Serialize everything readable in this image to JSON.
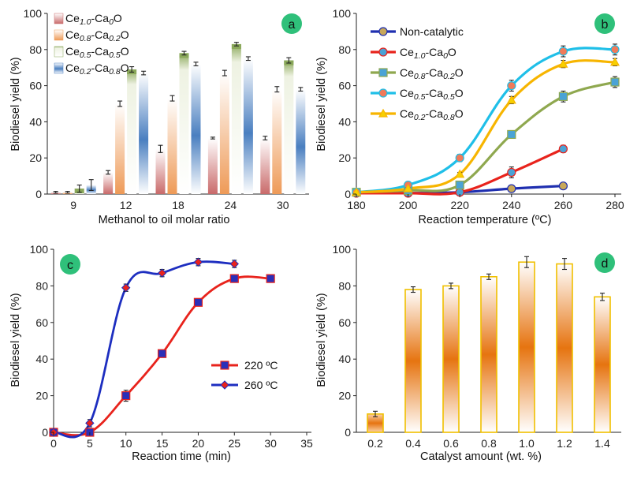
{
  "chart_data": [
    {
      "panel": "a",
      "type": "bar",
      "xlabel": "Methanol to oil molar ratio",
      "ylabel": "Biodiesel yield (%)",
      "ylim": [
        0,
        100
      ],
      "yticks": [
        0,
        20,
        40,
        60,
        80,
        100
      ],
      "categories": [
        "9",
        "12",
        "18",
        "24",
        "30"
      ],
      "legend_position": "top-left",
      "series": [
        {
          "name_parts": [
            [
              "Ce",
              ""
            ],
            [
              "1.0",
              "sub"
            ],
            [
              "-Ca",
              ""
            ],
            [
              "0",
              "sub"
            ],
            [
              "O",
              ""
            ]
          ],
          "values": [
            1,
            12,
            25,
            31,
            31
          ],
          "errors": [
            0.5,
            1,
            2,
            0.5,
            1
          ],
          "color": "#c96a6a"
        },
        {
          "name_parts": [
            [
              "Ce",
              ""
            ],
            [
              "0.8",
              "sub"
            ],
            [
              "-Ca",
              ""
            ],
            [
              "0.2",
              "sub"
            ],
            [
              "O",
              ""
            ]
          ],
          "values": [
            1,
            50,
            53,
            67,
            58
          ],
          "errors": [
            0.5,
            1.5,
            1.5,
            1.5,
            1.5
          ],
          "color": "#ee9a57"
        },
        {
          "name_parts": [
            [
              "Ce",
              ""
            ],
            [
              "0.5",
              "sub"
            ],
            [
              "-Ca",
              ""
            ],
            [
              "0.5",
              "sub"
            ],
            [
              "O",
              ""
            ]
          ],
          "values": [
            3,
            69,
            78,
            83,
            74
          ],
          "errors": [
            2,
            1.5,
            1,
            1,
            1.5
          ],
          "color": "#8aa85a"
        },
        {
          "name_parts": [
            [
              "Ce",
              ""
            ],
            [
              "0.2",
              "sub"
            ],
            [
              "-Ca",
              ""
            ],
            [
              "0.8",
              "sub"
            ],
            [
              "O",
              ""
            ]
          ],
          "values": [
            5,
            67,
            72,
            75,
            58
          ],
          "errors": [
            3,
            1,
            1,
            1,
            1
          ],
          "color": "#4a7fc0"
        }
      ]
    },
    {
      "panel": "b",
      "type": "line",
      "xlabel": "Reaction temperature (ºC)",
      "ylabel": "Biodiesel yield (%)",
      "xlim": [
        180,
        280
      ],
      "xticks": [
        180,
        200,
        220,
        240,
        260,
        280
      ],
      "ylim": [
        0,
        100
      ],
      "yticks": [
        0,
        20,
        40,
        60,
        80,
        100
      ],
      "legend_position": "top-left",
      "series": [
        {
          "name_parts": [
            [
              "Non-catalytic",
              ""
            ]
          ],
          "color": "#1f2fb0",
          "marker": "circle",
          "marker_fill": "#c8a85a",
          "x": [
            180,
            200,
            220,
            240,
            260
          ],
          "y": [
            0.5,
            0.5,
            1,
            3,
            4.5
          ],
          "err": [
            0,
            0,
            0,
            0.5,
            0.5
          ]
        },
        {
          "name_parts": [
            [
              "Ce",
              ""
            ],
            [
              "1.0",
              "sub"
            ],
            [
              "-Ca",
              ""
            ],
            [
              "0",
              "sub"
            ],
            [
              "O",
              ""
            ]
          ],
          "color": "#e8231c",
          "marker": "circle",
          "marker_fill": "#4aa3d6",
          "x": [
            180,
            200,
            220,
            240,
            260
          ],
          "y": [
            0.5,
            0.5,
            1,
            12,
            25
          ],
          "err": [
            0,
            0,
            0.5,
            3,
            2
          ]
        },
        {
          "name_parts": [
            [
              "Ce",
              ""
            ],
            [
              "0.8",
              "sub"
            ],
            [
              "-Ca",
              ""
            ],
            [
              "0.2",
              "sub"
            ],
            [
              "O",
              ""
            ]
          ],
          "color": "#8fa84f",
          "marker": "square",
          "marker_fill": "#4aa3d6",
          "x": [
            180,
            200,
            220,
            240,
            260,
            280
          ],
          "y": [
            1,
            2,
            5,
            33,
            54,
            62
          ],
          "err": [
            0,
            0,
            2,
            2,
            3,
            3
          ]
        },
        {
          "name_parts": [
            [
              "Ce",
              ""
            ],
            [
              "0.5",
              "sub"
            ],
            [
              "-Ca",
              ""
            ],
            [
              "0.5",
              "sub"
            ],
            [
              "O",
              ""
            ]
          ],
          "color": "#1fbfe8",
          "marker": "circle",
          "marker_fill": "#f07a5a",
          "x": [
            180,
            200,
            220,
            240,
            260,
            280
          ],
          "y": [
            1,
            5,
            20,
            60,
            79,
            80
          ],
          "err": [
            0,
            0.5,
            2,
            3,
            3,
            3
          ]
        },
        {
          "name_parts": [
            [
              "Ce",
              ""
            ],
            [
              "0.2",
              "sub"
            ],
            [
              "-Ca",
              ""
            ],
            [
              "0.8",
              "sub"
            ],
            [
              "O",
              ""
            ]
          ],
          "color": "#f7b500",
          "marker": "triangle",
          "marker_fill": "#f7d000",
          "x": [
            180,
            200,
            220,
            240,
            260,
            280
          ],
          "y": [
            1,
            3,
            11,
            52,
            72,
            73
          ],
          "err": [
            0,
            0.5,
            1,
            2,
            2,
            2
          ]
        }
      ]
    },
    {
      "panel": "c",
      "type": "line",
      "xlabel": "Reaction time (min)",
      "ylabel": "Biodiesel yield (%)",
      "xlim": [
        0,
        35
      ],
      "xticks": [
        0,
        5,
        10,
        15,
        20,
        25,
        30,
        35
      ],
      "ylim": [
        0,
        100
      ],
      "yticks": [
        0,
        20,
        40,
        60,
        80,
        100
      ],
      "legend_position": "center-right",
      "series": [
        {
          "name_parts": [
            [
              "220 ºC",
              ""
            ]
          ],
          "color": "#e8231c",
          "marker": "square",
          "marker_fill": "#2b2fb8",
          "x": [
            0,
            5,
            10,
            15,
            20,
            25,
            30
          ],
          "y": [
            0,
            0,
            20,
            43,
            71,
            84,
            84
          ],
          "err": [
            0,
            0,
            3,
            2,
            2,
            2,
            2
          ]
        },
        {
          "name_parts": [
            [
              "260 ºC",
              ""
            ]
          ],
          "color": "#1d2ec0",
          "marker": "diamond",
          "marker_fill": "#e8231c",
          "x": [
            0,
            5,
            10,
            15,
            20,
            25
          ],
          "y": [
            0,
            5,
            79,
            87,
            93,
            92
          ],
          "err": [
            0,
            2,
            2,
            2,
            2,
            2
          ]
        }
      ]
    },
    {
      "panel": "d",
      "type": "bar",
      "xlabel": "Catalyst amount (wt. %)",
      "ylabel": "Biodiesel yield (%)",
      "ylim": [
        0,
        100
      ],
      "yticks": [
        0,
        20,
        40,
        60,
        80,
        100
      ],
      "categories": [
        "0.2",
        "0.4",
        "0.6",
        "0.8",
        "1.0",
        "1.2",
        "1.4"
      ],
      "values": [
        10,
        78,
        80,
        85,
        93,
        92,
        74
      ],
      "errors": [
        1.5,
        1.5,
        1.5,
        1.5,
        3,
        3,
        2
      ],
      "color": "#e67410",
      "border_color": "#f0c000"
    }
  ]
}
